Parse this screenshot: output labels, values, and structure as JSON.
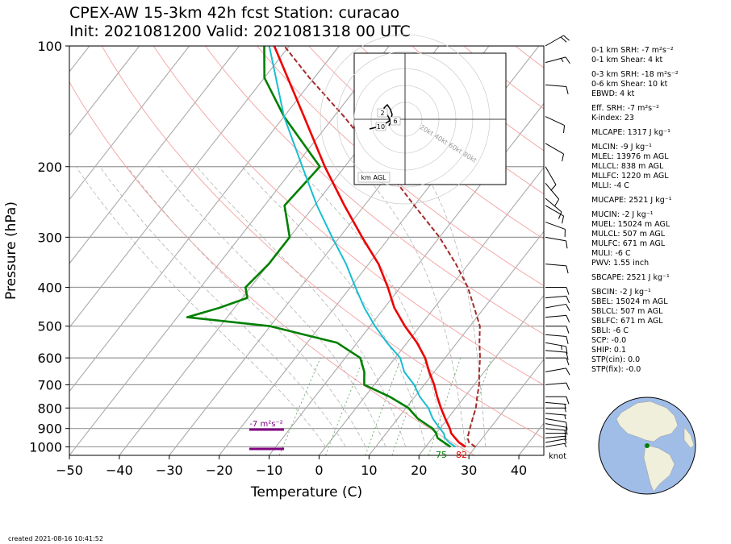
{
  "title": {
    "line1": "CPEX-AW 15-3km  42h fcst  Station: curacao",
    "line2": "Init: 2021081200  Valid: 2021081318 00 UTC"
  },
  "created": "created 2021-08-16 10:41:52",
  "indices": [
    "0-1 km SRH: -7 m²s⁻²",
    "0-1 km Shear: 4 kt",
    "0-3 km SRH: -18 m²s⁻²",
    "0-6 km Shear: 10 kt",
    "EBWD: 4 kt",
    "Eff. SRH: -7 m²s⁻²",
    "K-index: 23",
    "MLCAPE: 1317 J kg⁻¹",
    "MLCIN: -9 J kg⁻¹",
    "MLEL: 13976 m AGL",
    "MLLCL: 838 m AGL",
    "MLLFC: 1220 m AGL",
    "MLLI: -4 C",
    "MUCAPE: 2521 J kg⁻¹",
    "MUCIN: -2 J kg⁻¹",
    "MUEL: 15024 m AGL",
    "MULCL: 507 m AGL",
    "MULFC: 671 m AGL",
    "MULI: -6 C",
    "PWV: 1.55 inch",
    "SBCAPE: 2521 J kg⁻¹",
    "SBCIN: -2 J kg⁻¹",
    "SBEL: 15024 m AGL",
    "SBLCL: 507 m AGL",
    "SBLFC: 671 m AGL",
    "SBLI: -6 C",
    "SCP: -0.0",
    "SHIP: 0.1",
    "STP(cin): 0.0",
    "STP(fix): -0.0"
  ],
  "hodograph": {
    "ring_labels": [
      "20kt",
      "40kt",
      "60kt",
      "80kt"
    ],
    "height_labels": [
      "2",
      "6",
      "10"
    ],
    "footer": "km AGL"
  },
  "annotations": {
    "srh_label": "-7 m²s⁻²",
    "surface_td": "75",
    "surface_t": "82",
    "wind_unit": "knot"
  },
  "colors": {
    "temperature": "#ee0000",
    "dewpoint": "#008000",
    "wetbulb": "#17becf",
    "parcel": "#a52a2a",
    "srh_bar": "#800080",
    "ocean": "#a0bde8",
    "land": "#efefdc"
  },
  "chart_data": {
    "type": "skew-t",
    "xlabel": "Temperature (C)",
    "ylabel": "Pressure (hPa)",
    "xlim": [
      -50,
      45
    ],
    "ylim": [
      1050,
      100
    ],
    "xticks": [
      -50,
      -40,
      -30,
      -20,
      -10,
      0,
      10,
      20,
      30,
      40
    ],
    "yticks": [
      1000,
      900,
      800,
      700,
      600,
      500,
      400,
      300,
      200,
      100
    ],
    "series": [
      {
        "key": "temperature",
        "points": [
          [
            1000,
            28
          ],
          [
            975,
            26
          ],
          [
            950,
            24.5
          ],
          [
            925,
            23
          ],
          [
            900,
            22
          ],
          [
            850,
            19.5
          ],
          [
            800,
            17
          ],
          [
            750,
            14.5
          ],
          [
            700,
            12
          ],
          [
            650,
            9
          ],
          [
            600,
            6
          ],
          [
            550,
            2
          ],
          [
            500,
            -3
          ],
          [
            450,
            -8
          ],
          [
            400,
            -12.5
          ],
          [
            350,
            -18
          ],
          [
            300,
            -25.5
          ],
          [
            250,
            -34
          ],
          [
            200,
            -44
          ],
          [
            150,
            -56
          ],
          [
            100,
            -73
          ]
        ]
      },
      {
        "key": "dewpoint",
        "points": [
          [
            1000,
            25
          ],
          [
            975,
            23
          ],
          [
            950,
            21
          ],
          [
            925,
            20
          ],
          [
            900,
            18.5
          ],
          [
            850,
            14
          ],
          [
            800,
            10.5
          ],
          [
            750,
            5
          ],
          [
            700,
            -2
          ],
          [
            650,
            -4
          ],
          [
            600,
            -7
          ],
          [
            550,
            -14
          ],
          [
            500,
            -30
          ],
          [
            475,
            -48
          ],
          [
            450,
            -43
          ],
          [
            425,
            -39
          ],
          [
            400,
            -41
          ],
          [
            350,
            -40
          ],
          [
            300,
            -40
          ],
          [
            250,
            -46
          ],
          [
            200,
            -45
          ],
          [
            150,
            -60
          ],
          [
            120,
            -70
          ],
          [
            100,
            -75
          ]
        ]
      },
      {
        "key": "wetbulb",
        "points": [
          [
            1000,
            26
          ],
          [
            975,
            24
          ],
          [
            950,
            22.5
          ],
          [
            925,
            21.5
          ],
          [
            900,
            20
          ],
          [
            850,
            17
          ],
          [
            800,
            14.5
          ],
          [
            750,
            11
          ],
          [
            700,
            8
          ],
          [
            650,
            4
          ],
          [
            600,
            1
          ],
          [
            550,
            -4
          ],
          [
            500,
            -9
          ],
          [
            450,
            -14
          ],
          [
            400,
            -19
          ],
          [
            350,
            -24.5
          ],
          [
            300,
            -31.5
          ],
          [
            250,
            -39.5
          ],
          [
            200,
            -48.5
          ],
          [
            150,
            -60
          ],
          [
            100,
            -74
          ]
        ]
      },
      {
        "key": "parcel",
        "points": [
          [
            1000,
            30
          ],
          [
            975,
            28
          ],
          [
            950,
            27
          ],
          [
            900,
            26
          ],
          [
            850,
            25
          ],
          [
            800,
            24
          ],
          [
            750,
            22.5
          ],
          [
            700,
            21
          ],
          [
            650,
            19
          ],
          [
            600,
            17
          ],
          [
            550,
            14.5
          ],
          [
            500,
            12
          ],
          [
            450,
            8
          ],
          [
            400,
            3.5
          ],
          [
            350,
            -2.5
          ],
          [
            300,
            -10
          ],
          [
            250,
            -20
          ],
          [
            200,
            -32
          ],
          [
            150,
            -48
          ],
          [
            120,
            -61
          ],
          [
            100,
            -71
          ]
        ]
      }
    ],
    "dry_adiabats_K": [
      300,
      320,
      340,
      360,
      380,
      400,
      420,
      440,
      460,
      480,
      500
    ],
    "moist_adiabats_C": [
      0,
      4,
      8,
      12,
      16,
      20,
      24,
      28,
      32
    ],
    "mixing_ratios_gkg": [
      2,
      4,
      7,
      10,
      16,
      24
    ],
    "wind_barbs": [
      {
        "p": 1000,
        "dir": 80,
        "spd": 5
      },
      {
        "p": 975,
        "dir": 80,
        "spd": 5
      },
      {
        "p": 950,
        "dir": 85,
        "spd": 5
      },
      {
        "p": 925,
        "dir": 90,
        "spd": 5
      },
      {
        "p": 900,
        "dir": 95,
        "spd": 5
      },
      {
        "p": 875,
        "dir": 100,
        "spd": 10
      },
      {
        "p": 850,
        "dir": 100,
        "spd": 10
      },
      {
        "p": 825,
        "dir": 95,
        "spd": 5
      },
      {
        "p": 800,
        "dir": 90,
        "spd": 5
      },
      {
        "p": 775,
        "dir": 95,
        "spd": 5
      },
      {
        "p": 750,
        "dir": 90,
        "spd": 10
      },
      {
        "p": 700,
        "dir": 85,
        "spd": 10
      },
      {
        "p": 650,
        "dir": 80,
        "spd": 10
      },
      {
        "p": 600,
        "dir": 90,
        "spd": 10
      },
      {
        "p": 575,
        "dir": 95,
        "spd": 10
      },
      {
        "p": 550,
        "dir": 100,
        "spd": 15
      },
      {
        "p": 525,
        "dir": 95,
        "spd": 10
      },
      {
        "p": 500,
        "dir": 90,
        "spd": 10
      },
      {
        "p": 475,
        "dir": 85,
        "spd": 10
      },
      {
        "p": 450,
        "dir": 80,
        "spd": 10
      },
      {
        "p": 425,
        "dir": 85,
        "spd": 10
      },
      {
        "p": 400,
        "dir": 90,
        "spd": 10
      },
      {
        "p": 350,
        "dir": 95,
        "spd": 10
      },
      {
        "p": 300,
        "dir": 100,
        "spd": 10
      },
      {
        "p": 275,
        "dir": 110,
        "spd": 10
      },
      {
        "p": 250,
        "dir": 120,
        "spd": 10
      },
      {
        "p": 240,
        "dir": 130,
        "spd": 10
      },
      {
        "p": 220,
        "dir": 140,
        "spd": 10
      },
      {
        "p": 200,
        "dir": 150,
        "spd": 10
      },
      {
        "p": 175,
        "dir": 120,
        "spd": 10
      },
      {
        "p": 150,
        "dir": 115,
        "spd": 10
      },
      {
        "p": 125,
        "dir": 95,
        "spd": 10
      },
      {
        "p": 110,
        "dir": 75,
        "spd": 15
      },
      {
        "p": 100,
        "dir": 60,
        "spd": 20
      }
    ]
  }
}
